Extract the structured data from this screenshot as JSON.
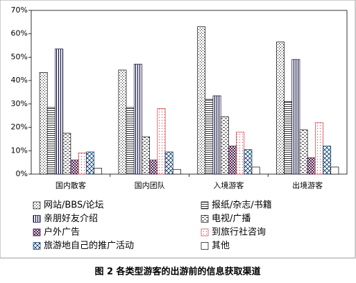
{
  "chart_data": {
    "type": "bar",
    "title": "图 2 各类型游客的出游前的信息获取渠道",
    "categories": [
      "国内散客",
      "国内团队",
      "入境游客",
      "出境游客"
    ],
    "series": [
      {
        "name": "网站/BBS/论坛",
        "color": "#000000",
        "values": [
          43.5,
          44.5,
          63,
          56.5
        ]
      },
      {
        "name": "报纸/杂志/书籍",
        "color": "#000000",
        "values": [
          28.5,
          28.5,
          32,
          31
        ]
      },
      {
        "name": "亲朋好友介绍",
        "color": "#000033",
        "values": [
          53.5,
          47,
          33.5,
          49
        ]
      },
      {
        "name": "电视/广播",
        "color": "#000000",
        "values": [
          17.5,
          16,
          24.5,
          19
        ]
      },
      {
        "name": "户外广告",
        "color": "#330033",
        "values": [
          6,
          6,
          12,
          7
        ]
      },
      {
        "name": "到旅行社咨询",
        "color": "#cc3333",
        "values": [
          9,
          28,
          18,
          22
        ]
      },
      {
        "name": "旅游地自己的推广活动",
        "color": "#003366",
        "values": [
          9.5,
          9.5,
          10.5,
          12
        ]
      },
      {
        "name": "其他",
        "color": "#000000",
        "values": [
          2.5,
          2,
          3,
          3
        ]
      }
    ],
    "ylim": [
      0,
      70
    ],
    "yticks": [
      {
        "value": 0,
        "label": "0%"
      },
      {
        "value": 10,
        "label": "10%"
      },
      {
        "value": 20,
        "label": "20%"
      },
      {
        "value": 30,
        "label": "30%"
      },
      {
        "value": 40,
        "label": "40%"
      },
      {
        "value": 50,
        "label": "50%"
      },
      {
        "value": 60,
        "label": "60%"
      },
      {
        "value": 70,
        "label": "70%"
      }
    ],
    "grid": false
  }
}
